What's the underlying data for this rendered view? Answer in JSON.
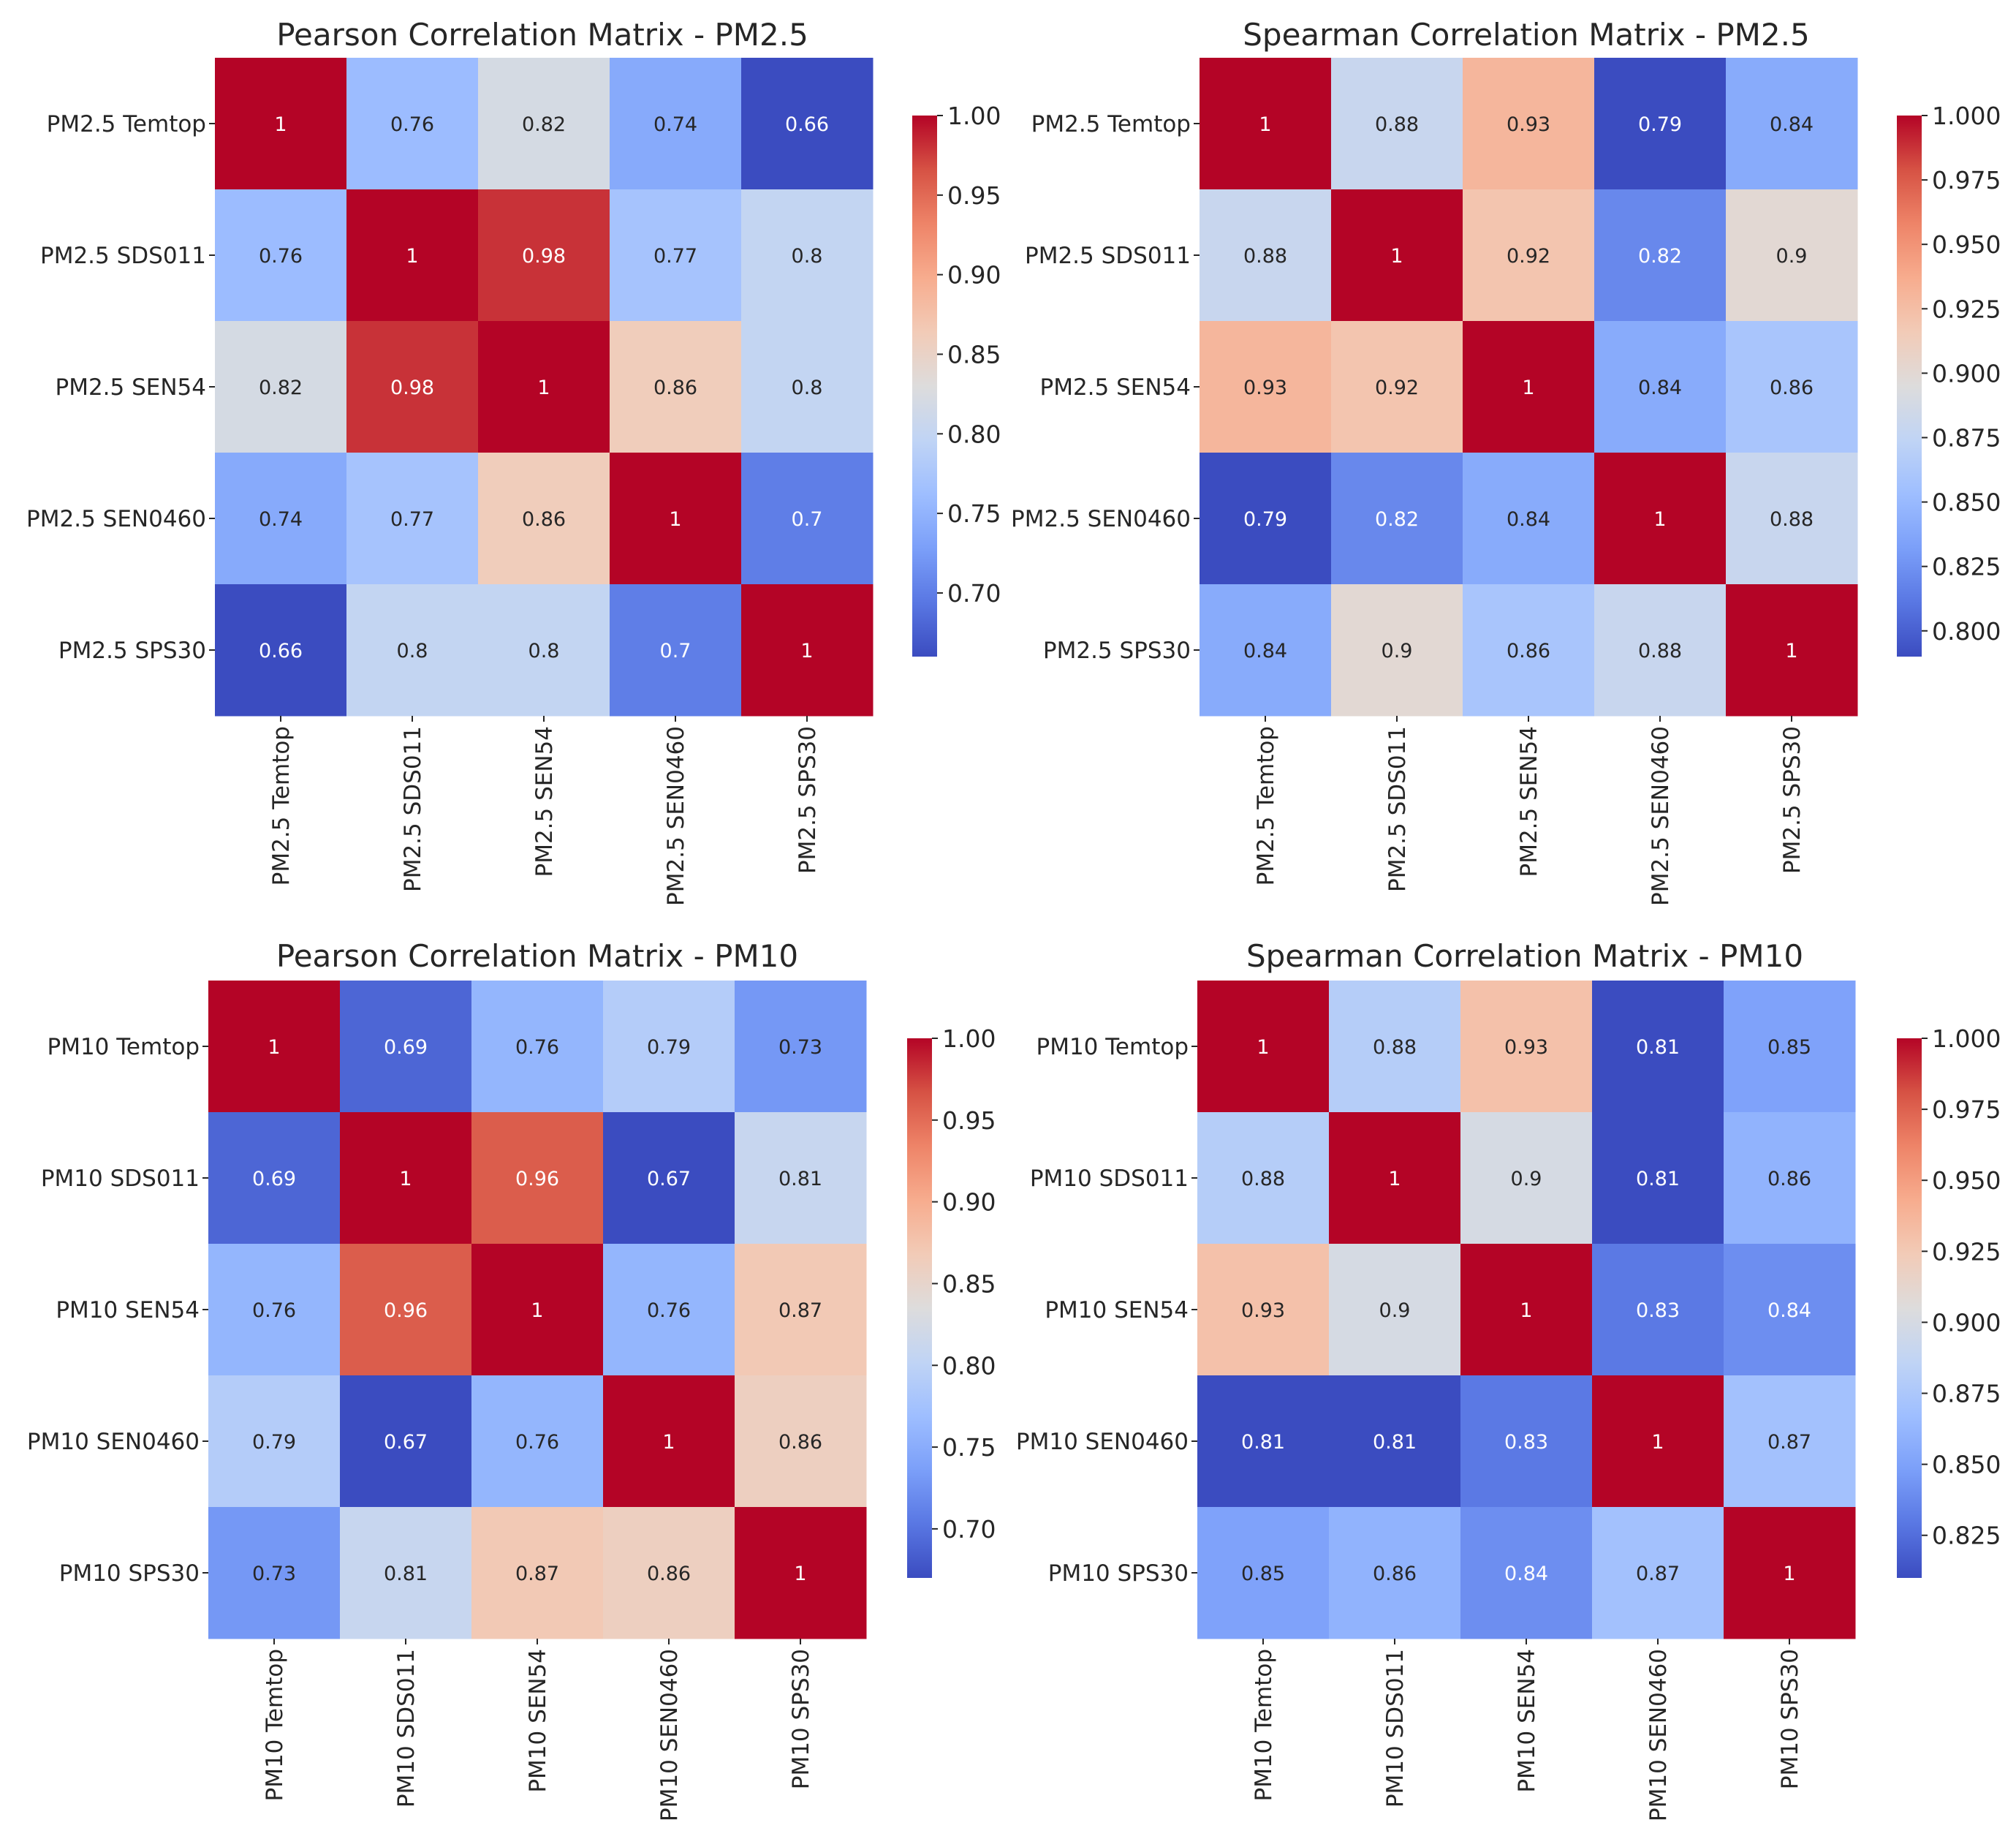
{
  "figure": {
    "panel_count": 4,
    "colormap": [
      "#3b4cc0",
      "#5977e3",
      "#7b9ff9",
      "#9ebeff",
      "#c0d4f5",
      "#dddcdc",
      "#f2cbb7",
      "#f7ac8e",
      "#ee8468",
      "#d65244",
      "#b40426"
    ]
  },
  "chart_data": [
    {
      "type": "heatmap",
      "title": "Pearson Correlation Matrix - PM2.5",
      "row_labels": [
        "PM2.5 Temtop",
        "PM2.5 SDS011",
        "PM2.5 SEN54",
        "PM2.5 SEN0460",
        "PM2.5 SPS30"
      ],
      "col_labels": [
        "PM2.5 Temtop",
        "PM2.5 SDS011",
        "PM2.5 SEN54",
        "PM2.5 SEN0460",
        "PM2.5 SPS30"
      ],
      "values": [
        [
          1,
          0.76,
          0.82,
          0.74,
          0.66
        ],
        [
          0.76,
          1,
          0.98,
          0.77,
          0.8
        ],
        [
          0.82,
          0.98,
          1,
          0.86,
          0.8
        ],
        [
          0.74,
          0.77,
          0.86,
          1,
          0.7
        ],
        [
          0.66,
          0.8,
          0.8,
          0.7,
          1
        ]
      ],
      "vmin": 0.66,
      "vmax": 1.0,
      "colorbar_ticks": [
        "1.00",
        "0.95",
        "0.90",
        "0.85",
        "0.80",
        "0.75",
        "0.70"
      ]
    },
    {
      "type": "heatmap",
      "title": "Spearman Correlation Matrix - PM2.5",
      "row_labels": [
        "PM2.5 Temtop",
        "PM2.5 SDS011",
        "PM2.5 SEN54",
        "PM2.5 SEN0460",
        "PM2.5 SPS30"
      ],
      "col_labels": [
        "PM2.5 Temtop",
        "PM2.5 SDS011",
        "PM2.5 SEN54",
        "PM2.5 SEN0460",
        "PM2.5 SPS30"
      ],
      "values": [
        [
          1,
          0.88,
          0.93,
          0.79,
          0.84
        ],
        [
          0.88,
          1,
          0.92,
          0.82,
          0.9
        ],
        [
          0.93,
          0.92,
          1,
          0.84,
          0.86
        ],
        [
          0.79,
          0.82,
          0.84,
          1,
          0.88
        ],
        [
          0.84,
          0.9,
          0.86,
          0.88,
          1
        ]
      ],
      "vmin": 0.79,
      "vmax": 1.0,
      "colorbar_ticks": [
        "1.000",
        "0.975",
        "0.950",
        "0.925",
        "0.900",
        "0.875",
        "0.850",
        "0.825",
        "0.800"
      ]
    },
    {
      "type": "heatmap",
      "title": "Pearson Correlation Matrix - PM10",
      "row_labels": [
        "PM10 Temtop",
        "PM10 SDS011",
        "PM10 SEN54",
        "PM10 SEN0460",
        "PM10 SPS30"
      ],
      "col_labels": [
        "PM10 Temtop",
        "PM10 SDS011",
        "PM10 SEN54",
        "PM10 SEN0460",
        "PM10 SPS30"
      ],
      "values": [
        [
          1,
          0.69,
          0.76,
          0.79,
          0.73
        ],
        [
          0.69,
          1,
          0.96,
          0.67,
          0.81
        ],
        [
          0.76,
          0.96,
          1,
          0.76,
          0.87
        ],
        [
          0.79,
          0.67,
          0.76,
          1,
          0.86
        ],
        [
          0.73,
          0.81,
          0.87,
          0.86,
          1
        ]
      ],
      "vmin": 0.67,
      "vmax": 1.0,
      "colorbar_ticks": [
        "1.00",
        "0.95",
        "0.90",
        "0.85",
        "0.80",
        "0.75",
        "0.70"
      ]
    },
    {
      "type": "heatmap",
      "title": "Spearman Correlation Matrix - PM10",
      "row_labels": [
        "PM10 Temtop",
        "PM10 SDS011",
        "PM10 SEN54",
        "PM10 SEN0460",
        "PM10 SPS30"
      ],
      "col_labels": [
        "PM10 Temtop",
        "PM10 SDS011",
        "PM10 SEN54",
        "PM10 SEN0460",
        "PM10 SPS30"
      ],
      "values": [
        [
          1,
          0.88,
          0.93,
          0.81,
          0.85
        ],
        [
          0.88,
          1,
          0.9,
          0.81,
          0.86
        ],
        [
          0.93,
          0.9,
          1,
          0.83,
          0.84
        ],
        [
          0.81,
          0.81,
          0.83,
          1,
          0.87
        ],
        [
          0.85,
          0.86,
          0.84,
          0.87,
          1
        ]
      ],
      "vmin": 0.81,
      "vmax": 1.0,
      "colorbar_ticks": [
        "1.000",
        "0.975",
        "0.950",
        "0.925",
        "0.900",
        "0.875",
        "0.850",
        "0.825"
      ]
    }
  ]
}
